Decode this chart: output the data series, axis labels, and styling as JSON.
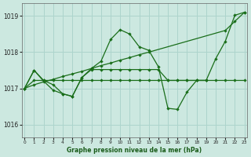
{
  "title": "Graphe pression niveau de la mer (hPa)",
  "bg_color": "#cce8e0",
  "grid_color": "#add4cc",
  "line_color": "#1a6e1a",
  "ylim": [
    1015.65,
    1019.35
  ],
  "xlim": [
    -0.3,
    23.3
  ],
  "yticks": [
    1016,
    1017,
    1018,
    1019
  ],
  "xticks": [
    0,
    1,
    2,
    3,
    4,
    5,
    6,
    7,
    8,
    9,
    10,
    11,
    12,
    13,
    14,
    15,
    16,
    17,
    18,
    19,
    20,
    21,
    22,
    23
  ],
  "curve_main_x": [
    0,
    1,
    2,
    3,
    4,
    5,
    6,
    7,
    8,
    9,
    10,
    11,
    12,
    13,
    14,
    15,
    16,
    17,
    18,
    19,
    20,
    21,
    22,
    23
  ],
  "curve_main_y": [
    1017.0,
    1017.5,
    1017.2,
    1016.95,
    1016.85,
    1016.78,
    1017.3,
    1017.55,
    1017.75,
    1018.35,
    1018.62,
    1018.5,
    1018.15,
    1018.05,
    1017.6,
    1016.45,
    1016.42,
    1016.9,
    1017.22,
    1017.22,
    1017.82,
    1018.3,
    1019.02,
    1019.1
  ],
  "curve_diag_x": [
    0,
    1,
    2,
    3,
    4,
    5,
    6,
    7,
    8,
    9,
    10,
    11,
    12,
    13,
    21,
    22,
    23
  ],
  "curve_diag_y": [
    1017.0,
    1017.1,
    1017.18,
    1017.25,
    1017.33,
    1017.4,
    1017.47,
    1017.55,
    1017.63,
    1017.7,
    1017.78,
    1017.85,
    1017.93,
    1018.0,
    1018.6,
    1018.85,
    1019.1
  ],
  "curve_flat_x": [
    0,
    1,
    2,
    3,
    4,
    5,
    6,
    7,
    8,
    9,
    10,
    11,
    12,
    13,
    14,
    15,
    16,
    17,
    18,
    19
  ],
  "curve_flat_y": [
    1017.0,
    1017.22,
    1017.22,
    1017.22,
    1017.22,
    1017.22,
    1017.22,
    1017.22,
    1017.22,
    1017.22,
    1017.22,
    1017.22,
    1017.22,
    1017.22,
    1017.22,
    1017.22,
    1017.22,
    1017.22,
    1017.22,
    1017.22
  ],
  "curve_rise_x": [
    0,
    1,
    2,
    3,
    4,
    5,
    6,
    7,
    8,
    9,
    10,
    11,
    12,
    13,
    14,
    15,
    16,
    17,
    18,
    19,
    20,
    21,
    22,
    23
  ],
  "curve_rise_y": [
    1017.0,
    1017.5,
    1017.22,
    1017.1,
    1016.85,
    1016.78,
    1017.3,
    1017.52,
    1017.52,
    1017.52,
    1017.52,
    1017.52,
    1017.52,
    1017.52,
    1017.52,
    1017.22,
    1017.22,
    1017.22,
    1017.22,
    1017.22,
    1017.22,
    1017.22,
    1017.22,
    1017.22
  ]
}
